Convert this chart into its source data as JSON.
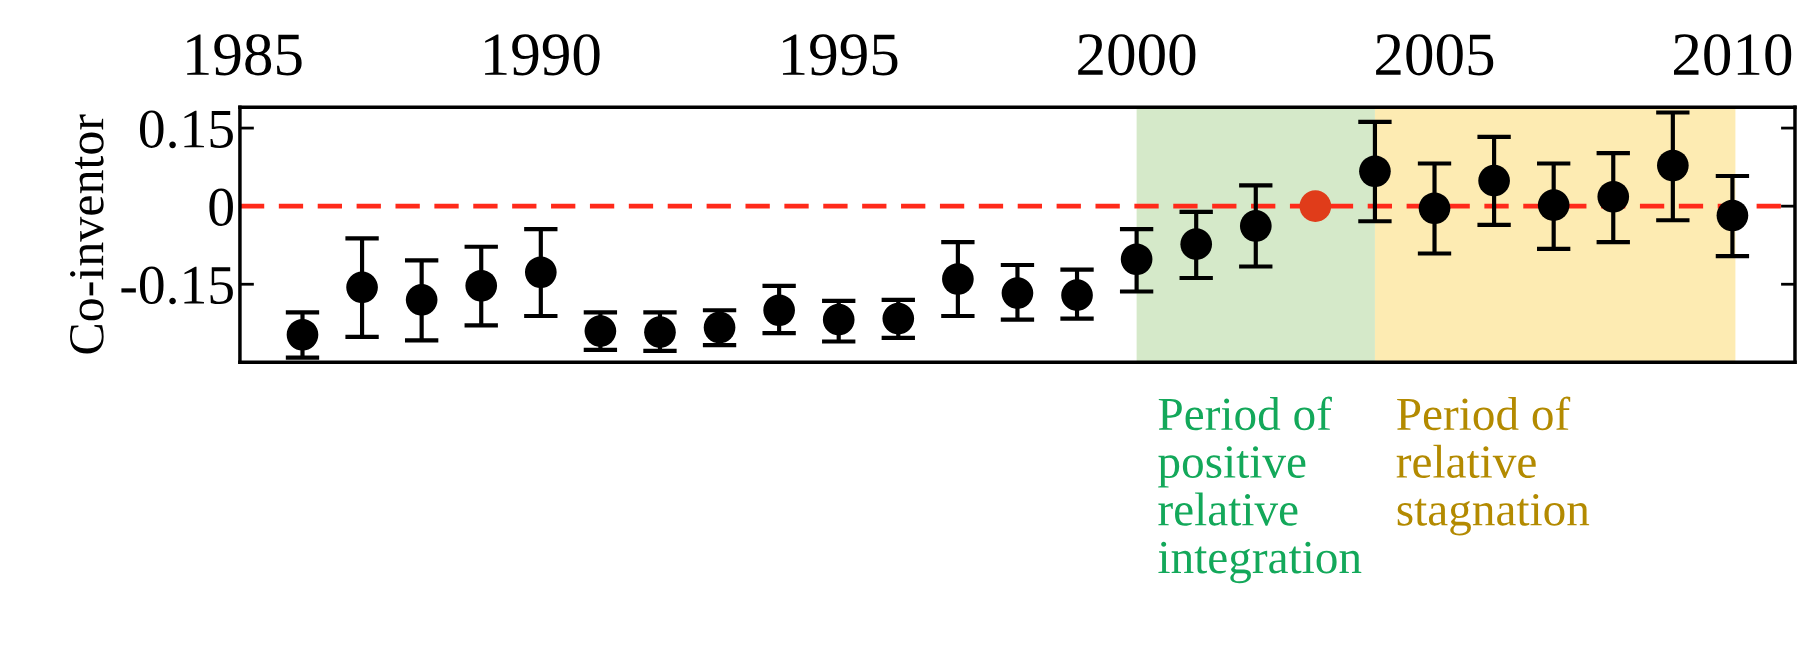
{
  "chart_data": {
    "type": "scatter",
    "ylabel": "Co-inventor",
    "marker": "circle",
    "grid": false,
    "legend": false,
    "xlim": [
      1984.95,
      2011.05
    ],
    "xticks": [
      1985,
      1990,
      1995,
      2000,
      2005,
      2010
    ],
    "ylim": [
      -0.3,
      0.19
    ],
    "yticks": [
      0.15,
      0,
      {
        "value": -0.15,
        "label": "-0.15"
      }
    ],
    "series": [
      {
        "color": "#000000",
        "x": [
          1986,
          1987,
          1988,
          1989,
          1990,
          1991,
          1992,
          1993,
          1994,
          1995,
          1996,
          1997,
          1998,
          1999,
          2000,
          2001,
          2002,
          2004,
          2005,
          2006,
          2007,
          2008,
          2009,
          2010
        ],
        "values": [
          -0.247,
          -0.156,
          -0.18,
          -0.153,
          -0.127,
          -0.24,
          -0.242,
          -0.233,
          -0.2,
          -0.218,
          -0.216,
          -0.14,
          -0.167,
          -0.171,
          -0.102,
          -0.073,
          -0.038,
          0.067,
          -0.004,
          0.049,
          0.002,
          0.018,
          0.078,
          -0.018
        ],
        "errors": [
          [
            -0.291,
            -0.204
          ],
          [
            -0.251,
            -0.062
          ],
          [
            -0.258,
            -0.104
          ],
          [
            -0.229,
            -0.078
          ],
          [
            -0.211,
            -0.044
          ],
          [
            -0.276,
            -0.204
          ],
          [
            -0.278,
            -0.204
          ],
          [
            -0.267,
            -0.2
          ],
          [
            -0.244,
            -0.153
          ],
          [
            -0.26,
            -0.182
          ],
          [
            -0.253,
            -0.18
          ],
          [
            -0.211,
            -0.069
          ],
          [
            -0.218,
            -0.113
          ],
          [
            -0.216,
            -0.122
          ],
          [
            -0.164,
            -0.044
          ],
          [
            -0.138,
            -0.011
          ],
          [
            -0.116,
            0.04
          ],
          [
            -0.029,
            0.162
          ],
          [
            -0.091,
            0.082
          ],
          [
            -0.036,
            0.133
          ],
          [
            -0.082,
            0.082
          ],
          [
            -0.069,
            0.102
          ],
          [
            -0.027,
            0.18
          ],
          [
            -0.096,
            0.058
          ]
        ]
      },
      {
        "color": "#e03c1a",
        "x": [
          2003
        ],
        "values": [
          0
        ]
      }
    ],
    "ref_lines": [
      {
        "axis": "y",
        "value": 0,
        "color": "#ff2a1a",
        "line_style": "dashed"
      }
    ],
    "bands": [
      {
        "axis": "x",
        "from": 2000,
        "to": 2004,
        "color": "#d5e9c9",
        "label": "Period of\npositive\nrelative\nintegration"
      },
      {
        "axis": "x",
        "from": 2004,
        "to": 2010.05,
        "color": "#fdebb2",
        "label": "Period of\nrelative\nstagnation"
      }
    ]
  }
}
